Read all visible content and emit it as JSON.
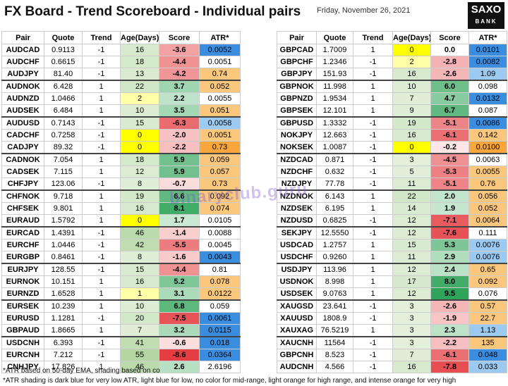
{
  "header": {
    "title": "FX Board - Trend Scoreboard - Individual pairs",
    "date": "Friday, November 26, 2021",
    "logo_top": "SAXO",
    "logo_bottom": "BANK"
  },
  "tables": [
    {
      "columns": [
        "Pair",
        "Quote",
        "Trend",
        "Age(Days)",
        "Score",
        "ATR*"
      ],
      "rows": [
        [
          "AUDCAD",
          "0.9113",
          "-1",
          "16",
          "-3.6",
          "0.0052"
        ],
        [
          "AUDCHF",
          "0.6615",
          "-1",
          "18",
          "-4.4",
          "0.0051"
        ],
        [
          "AUDJPY",
          "81.40",
          "-1",
          "13",
          "-4.2",
          "0.74"
        ],
        [
          "AUDNOK",
          "6.428",
          "1",
          "22",
          "3.7",
          "0.052"
        ],
        [
          "AUDNZD",
          "1.0466",
          "1",
          "2",
          "2.2",
          "0.0055"
        ],
        [
          "AUDSEK",
          "6.484",
          "1",
          "10",
          "3.5",
          "0.051"
        ],
        [
          "AUDUSD",
          "0.7143",
          "-1",
          "15",
          "-6.3",
          "0.0058"
        ],
        [
          "CADCHF",
          "0.7258",
          "-1",
          "0",
          "-2.0",
          "0.0051"
        ],
        [
          "CADJPY",
          "89.32",
          "-1",
          "0",
          "-2.2",
          "0.73"
        ],
        [
          "CADNOK",
          "7.054",
          "1",
          "18",
          "5.9",
          "0.059"
        ],
        [
          "CADSEK",
          "7.115",
          "1",
          "12",
          "5.9",
          "0.057"
        ],
        [
          "CHFJPY",
          "123.06",
          "-1",
          "8",
          "-0.7",
          "0.73"
        ],
        [
          "CHFNOK",
          "9.718",
          "1",
          "19",
          "6.6",
          "0.092"
        ],
        [
          "CHFSEK",
          "9.801",
          "1",
          "16",
          "8.1",
          "0.074"
        ],
        [
          "EURAUD",
          "1.5792",
          "1",
          "0",
          "1.7",
          "0.0105"
        ],
        [
          "EURCAD",
          "1.4391",
          "-1",
          "46",
          "-1.4",
          "0.0088"
        ],
        [
          "EURCHF",
          "1.0446",
          "-1",
          "42",
          "-5.5",
          "0.0045"
        ],
        [
          "EURGBP",
          "0.8461",
          "-1",
          "8",
          "-1.6",
          "0.0043"
        ],
        [
          "EURJPY",
          "128.55",
          "-1",
          "15",
          "-4.4",
          "0.81"
        ],
        [
          "EURNOK",
          "10.151",
          "1",
          "16",
          "5.2",
          "0.078"
        ],
        [
          "EURNZD",
          "1.6528",
          "1",
          "1",
          "3.1",
          "0.0122"
        ],
        [
          "EURSEK",
          "10.239",
          "1",
          "10",
          "6.8",
          "0.059"
        ],
        [
          "EURUSD",
          "1.1281",
          "-1",
          "20",
          "-7.5",
          "0.0061"
        ],
        [
          "GBPAUD",
          "1.8665",
          "1",
          "7",
          "3.2",
          "0.0115"
        ],
        [
          "USDCNH",
          "6.393",
          "-1",
          "41",
          "-0.6",
          "0.018"
        ],
        [
          "EURCNH",
          "7.212",
          "-1",
          "55",
          "-8.6",
          "0.0364"
        ],
        [
          "CNHJPY",
          "17.826",
          "1",
          "46",
          "2.6",
          "2.6196"
        ]
      ],
      "atr_colors": [
        "#3b8de0",
        null,
        "#fbc77d",
        "#fbc77d",
        null,
        "#fbc77d",
        "#9ccaf0",
        "#fbc77d",
        "#f9a63c",
        "#fbc77d",
        "#fbc77d",
        "#fbc77d",
        "#fbc77d",
        "#fbc77d",
        null,
        null,
        null,
        "#3b8de0",
        null,
        "#fbc77d",
        "#fbc77d",
        null,
        "#3b8de0",
        "#3b8de0",
        "#3b8de0",
        "#3b8de0",
        null
      ]
    },
    {
      "columns": [
        "Pair",
        "Quote",
        "Trend",
        "Age(Days)",
        "Score",
        "ATR*"
      ],
      "rows": [
        [
          "GBPCAD",
          "1.7009",
          "1",
          "0",
          "0.0",
          "0.0101"
        ],
        [
          "GBPCHF",
          "1.2346",
          "-1",
          "2",
          "-2.8",
          "0.0082"
        ],
        [
          "GBPJPY",
          "151.93",
          "-1",
          "16",
          "-2.6",
          "1.09"
        ],
        [
          "GBPNOK",
          "11.998",
          "1",
          "10",
          "6.0",
          "0.098"
        ],
        [
          "GBPNZD",
          "1.9534",
          "1",
          "7",
          "4.7",
          "0.0132"
        ],
        [
          "GBPSEK",
          "12.101",
          "1",
          "9",
          "6.7",
          "0.087"
        ],
        [
          "GBPUSD",
          "1.3332",
          "-1",
          "19",
          "-5.1",
          "0.0086"
        ],
        [
          "NOKJPY",
          "12.663",
          "-1",
          "16",
          "-6.1",
          "0.142"
        ],
        [
          "NOKSEK",
          "1.0087",
          "-1",
          "0",
          "-0.2",
          "0.0100"
        ],
        [
          "NZDCAD",
          "0.871",
          "-1",
          "3",
          "-4.5",
          "0.0063"
        ],
        [
          "NZDCHF",
          "0.632",
          "-1",
          "5",
          "-5.3",
          "0.0055"
        ],
        [
          "NZDJPY",
          "77.78",
          "-1",
          "11",
          "-5.1",
          "0.76"
        ],
        [
          "NZDNOK",
          "6.143",
          "1",
          "22",
          "2.0",
          "0.056"
        ],
        [
          "NZDSEK",
          "6.195",
          "1",
          "14",
          "1.9",
          "0.052"
        ],
        [
          "NZDUSD",
          "0.6825",
          "-1",
          "12",
          "-7.1",
          "0.0064"
        ],
        [
          "SEKJPY",
          "12.5550",
          "-1",
          "12",
          "-7.6",
          "0.111"
        ],
        [
          "USDCAD",
          "1.2757",
          "1",
          "15",
          "5.3",
          "0.0076"
        ],
        [
          "USDCHF",
          "0.9260",
          "1",
          "11",
          "2.9",
          "0.0076"
        ],
        [
          "USDJPY",
          "113.96",
          "1",
          "12",
          "2.4",
          "0.65"
        ],
        [
          "USDNOK",
          "8.998",
          "1",
          "17",
          "8.0",
          "0.092"
        ],
        [
          "USDSEK",
          "9.0763",
          "1",
          "12",
          "9.5",
          "0.076"
        ],
        [
          "XAUGSD",
          "23.641",
          "-1",
          "3",
          "-2.6",
          "0.57"
        ],
        [
          "XAUUSD",
          "1808.9",
          "-1",
          "3",
          "-1.9",
          "22.7"
        ],
        [
          "XAUXAG",
          "76.5219",
          "1",
          "3",
          "2.3",
          "1.13"
        ],
        [
          "XAUCNH",
          "11564",
          "-1",
          "3",
          "-2.2",
          "135"
        ],
        [
          "GBPCNH",
          "8.523",
          "-1",
          "7",
          "-6.1",
          "0.048"
        ],
        [
          "AUDCNH",
          "4.566",
          "-1",
          "16",
          "-7.8",
          "0.033"
        ]
      ],
      "atr_colors": [
        "#3b8de0",
        "#3b8de0",
        "#9ccaf0",
        null,
        "#3b8de0",
        null,
        "#3b8de0",
        "#fbc77d",
        "#f9a63c",
        null,
        "#fbc77d",
        "#fbc77d",
        "#fbc77d",
        "#fbc77d",
        "#fbc77d",
        null,
        "#9ccaf0",
        "#9ccaf0",
        "#fbc77d",
        "#fbc77d",
        null,
        "#fbc77d",
        "#fbc77d",
        "#9ccaf0",
        "#fbc77d",
        "#3b8de0",
        "#9ccaf0"
      ]
    }
  ],
  "watermark": "binaryclub.guru",
  "footnotes": [
    "*ATR based on 50-day EMA, shading based on co",
    "*ATR shading is dark blue for very low ATR, light blue for low, no color for mid-range, light orange for high range, and intense orange for very high"
  ]
}
